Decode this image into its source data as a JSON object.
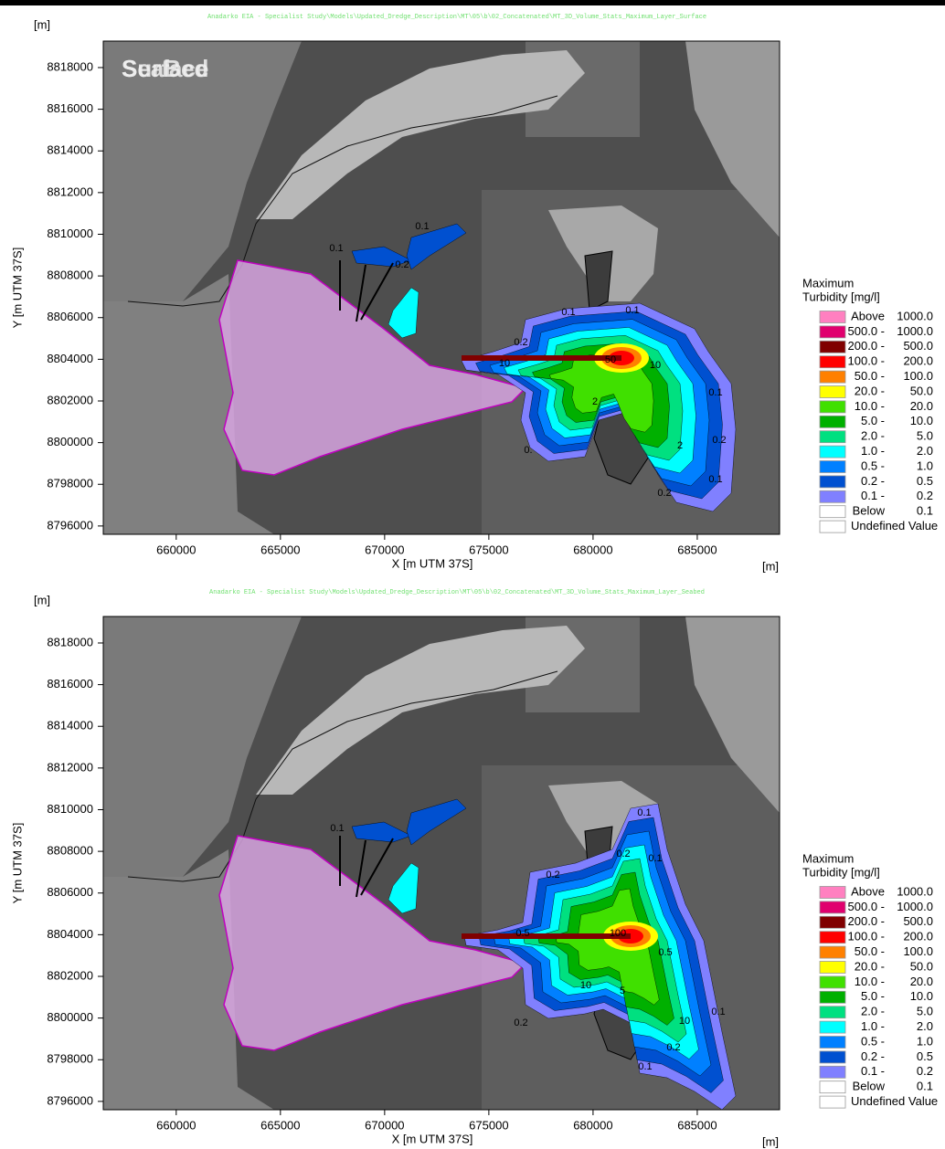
{
  "panels": [
    {
      "title": "Anadarko EIA - Specialist Study\\Models\\Updated_Dredge_Description\\MT\\05\\b\\02_Concatenated\\MT_3D_Volume_Stats_Maximum_Layer_Surface",
      "layer_label": [
        "SeaBed",
        "Surface"
      ],
      "y_unit": "[m]",
      "x_unit": "[m]",
      "xlabel": "X [m UTM 37S]",
      "ylabel": "Y [m UTM 37S]",
      "xlim": [
        656500,
        688950
      ],
      "ylim": [
        8795600,
        8819270
      ],
      "xticks": [
        660000,
        665000,
        670000,
        675000,
        680000,
        685000
      ],
      "yticks": [
        8796000,
        8798000,
        8800000,
        8802000,
        8804000,
        8806000,
        8808000,
        8810000,
        8812000,
        8814000,
        8816000,
        8818000
      ],
      "contour_labels": [
        "0.1",
        "0.1",
        "0.2",
        "0.1",
        "0.1",
        "0.2",
        "10",
        "50",
        "10",
        "0.1",
        "2",
        "2",
        "0.2",
        "0.1",
        "0.2",
        "0."
      ],
      "legend": {
        "title": [
          "Maximum",
          "Turbidity [mg/l]"
        ],
        "items": [
          {
            "from": "Above",
            "to": "1000.0",
            "color": "#ff80c0"
          },
          {
            "from": "500.0 -",
            "to": "1000.0",
            "color": "#e0006e"
          },
          {
            "from": "200.0 -",
            "to": "500.0",
            "color": "#800000"
          },
          {
            "from": "100.0 -",
            "to": "200.0",
            "color": "#ff0000"
          },
          {
            "from": "50.0 -",
            "to": "100.0",
            "color": "#ff8000"
          },
          {
            "from": "20.0 -",
            "to": "50.0",
            "color": "#ffff00"
          },
          {
            "from": "10.0 -",
            "to": "20.0",
            "color": "#40e000"
          },
          {
            "from": "5.0 -",
            "to": "10.0",
            "color": "#00b000"
          },
          {
            "from": "2.0 -",
            "to": "5.0",
            "color": "#00e080"
          },
          {
            "from": "1.0 -",
            "to": "2.0",
            "color": "#00ffff"
          },
          {
            "from": "0.5 -",
            "to": "1.0",
            "color": "#0080ff"
          },
          {
            "from": "0.2 -",
            "to": "0.5",
            "color": "#0050d0"
          },
          {
            "from": "0.1 -",
            "to": "0.2",
            "color": "#8080ff"
          },
          {
            "from": "Below",
            "to": "0.1",
            "color": "#ffffff"
          },
          {
            "from": "Undefined Value",
            "color": "#ffffff"
          }
        ]
      }
    },
    {
      "title": "Anadarko EIA - Specialist Study\\Models\\Updated_Dredge_Description\\MT\\05\\b\\02_Concatenated\\MT_3D_Volume_Stats_Maximum_Layer_Seabed",
      "y_unit": "[m]",
      "x_unit": "[m]",
      "xlabel": "X [m UTM 37S]",
      "ylabel": "Y [m UTM 37S]",
      "xlim": [
        656500,
        688950
      ],
      "ylim": [
        8795600,
        8819270
      ],
      "xticks": [
        660000,
        665000,
        670000,
        675000,
        680000,
        685000
      ],
      "yticks": [
        8796000,
        8798000,
        8800000,
        8802000,
        8804000,
        8806000,
        8808000,
        8810000,
        8812000,
        8814000,
        8816000,
        8818000
      ],
      "contour_labels": [
        "0.1",
        "0.1",
        "0.2",
        "0.2",
        "0.5",
        "100",
        "0.5",
        "10",
        "5",
        "10",
        "0.1",
        "0.2",
        "0.1",
        "0.2",
        "0.1"
      ],
      "legend": {
        "title": [
          "Maximum",
          "Turbidity [mg/l]"
        ],
        "items": [
          {
            "from": "Above",
            "to": "1000.0",
            "color": "#ff80c0"
          },
          {
            "from": "500.0 -",
            "to": "1000.0",
            "color": "#e0006e"
          },
          {
            "from": "200.0 -",
            "to": "500.0",
            "color": "#800000"
          },
          {
            "from": "100.0 -",
            "to": "200.0",
            "color": "#ff0000"
          },
          {
            "from": "50.0 -",
            "to": "100.0",
            "color": "#ff8000"
          },
          {
            "from": "20.0 -",
            "to": "50.0",
            "color": "#ffff00"
          },
          {
            "from": "10.0 -",
            "to": "20.0",
            "color": "#40e000"
          },
          {
            "from": "5.0 -",
            "to": "10.0",
            "color": "#00b000"
          },
          {
            "from": "2.0 -",
            "to": "5.0",
            "color": "#00e080"
          },
          {
            "from": "1.0 -",
            "to": "2.0",
            "color": "#00ffff"
          },
          {
            "from": "0.5 -",
            "to": "1.0",
            "color": "#0080ff"
          },
          {
            "from": "0.2 -",
            "to": "0.5",
            "color": "#0050d0"
          },
          {
            "from": "0.1 -",
            "to": "0.2",
            "color": "#8080ff"
          },
          {
            "from": "Below",
            "to": "0.1",
            "color": "#ffffff"
          },
          {
            "from": "Undefined Value",
            "color": "#ffffff"
          }
        ]
      }
    }
  ]
}
